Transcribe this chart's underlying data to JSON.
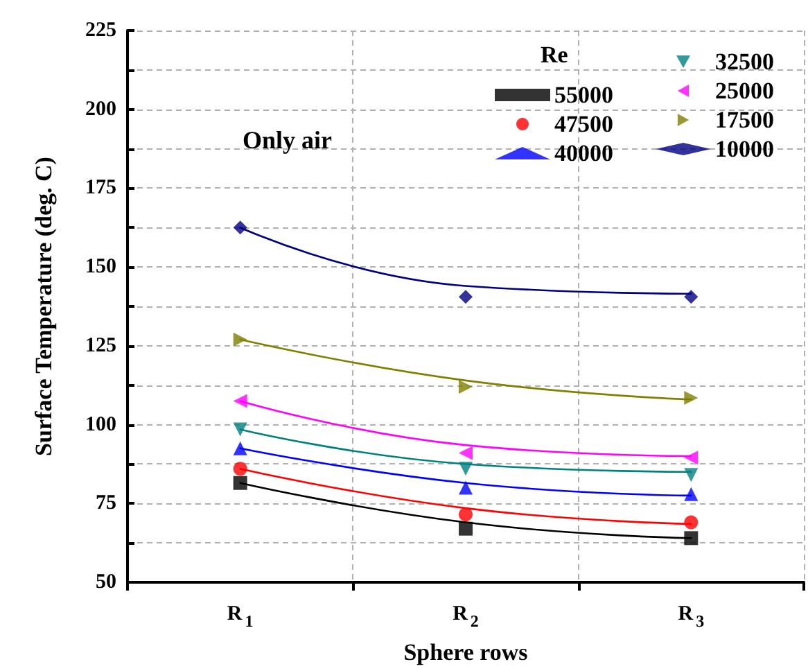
{
  "chart_data": {
    "type": "scatter",
    "xlabel": "Sphere rows",
    "ylabel": "Surface Temperature (deg. C)",
    "legend_title": "Re",
    "annotations": [
      "Only air"
    ],
    "categories": [
      "R$_{1}$",
      "R$_{2}$",
      "R$_{3}$"
    ],
    "ylim": [
      50,
      225
    ],
    "yticks": [
      50,
      {
        "value": 62.5,
        "label": null
      },
      75,
      {
        "value": 87.5,
        "label": null
      },
      100,
      {
        "value": 112.5,
        "label": null
      },
      125,
      {
        "value": 137.5,
        "label": null
      },
      150,
      {
        "value": 162.5,
        "label": null
      },
      175,
      {
        "value": 187.5,
        "label": null
      },
      200,
      {
        "value": 212.5,
        "label": null
      },
      225
    ],
    "grid": true,
    "legend": "top right",
    "series": [
      {
        "name": "55000",
        "color": "#000000",
        "marker": "square",
        "values": [
          81.5,
          67,
          64
        ]
      },
      {
        "name": "47500",
        "color": "#ff0000",
        "marker": "circle",
        "values": [
          86,
          71.5,
          69
        ]
      },
      {
        "name": "40000",
        "color": "#0000ff",
        "marker": "triangle",
        "values": [
          92.5,
          80,
          78
        ]
      },
      {
        "name": "32500",
        "color": "#008080",
        "marker": "triangle-down",
        "values": [
          98.5,
          86,
          84
        ]
      },
      {
        "name": "25000",
        "color": "#ff00ff",
        "marker": "triangle-left",
        "values": [
          107.5,
          91,
          89.5
        ]
      },
      {
        "name": "17500",
        "color": "#808000",
        "marker": "triangle-right",
        "values": [
          127,
          112,
          108.5
        ]
      },
      {
        "name": "10000",
        "color": "#000080",
        "marker": "diamond",
        "values": [
          162.5,
          140.5,
          140.5
        ]
      },
      {
        "type": "line",
        "color": "#000000",
        "marker": "none",
        "values": [
          81.5,
          69,
          64
        ]
      },
      {
        "type": "line",
        "color": "#ff0000",
        "marker": "none",
        "values": [
          86,
          73.5,
          68.5
        ]
      },
      {
        "type": "line",
        "color": "#0000ff",
        "marker": "none",
        "values": [
          92.5,
          81.5,
          77.5
        ]
      },
      {
        "type": "line",
        "color": "#008080",
        "marker": "none",
        "values": [
          98.5,
          87.5,
          85
        ]
      },
      {
        "type": "line",
        "color": "#ff00ff",
        "marker": "none",
        "values": [
          107.5,
          93.5,
          90
        ]
      },
      {
        "type": "line",
        "color": "#808000",
        "marker": "none",
        "values": [
          127,
          114,
          108
        ]
      },
      {
        "type": "line",
        "color": "#000080",
        "marker": "none",
        "values": [
          162.5,
          144,
          141.5
        ]
      }
    ]
  }
}
